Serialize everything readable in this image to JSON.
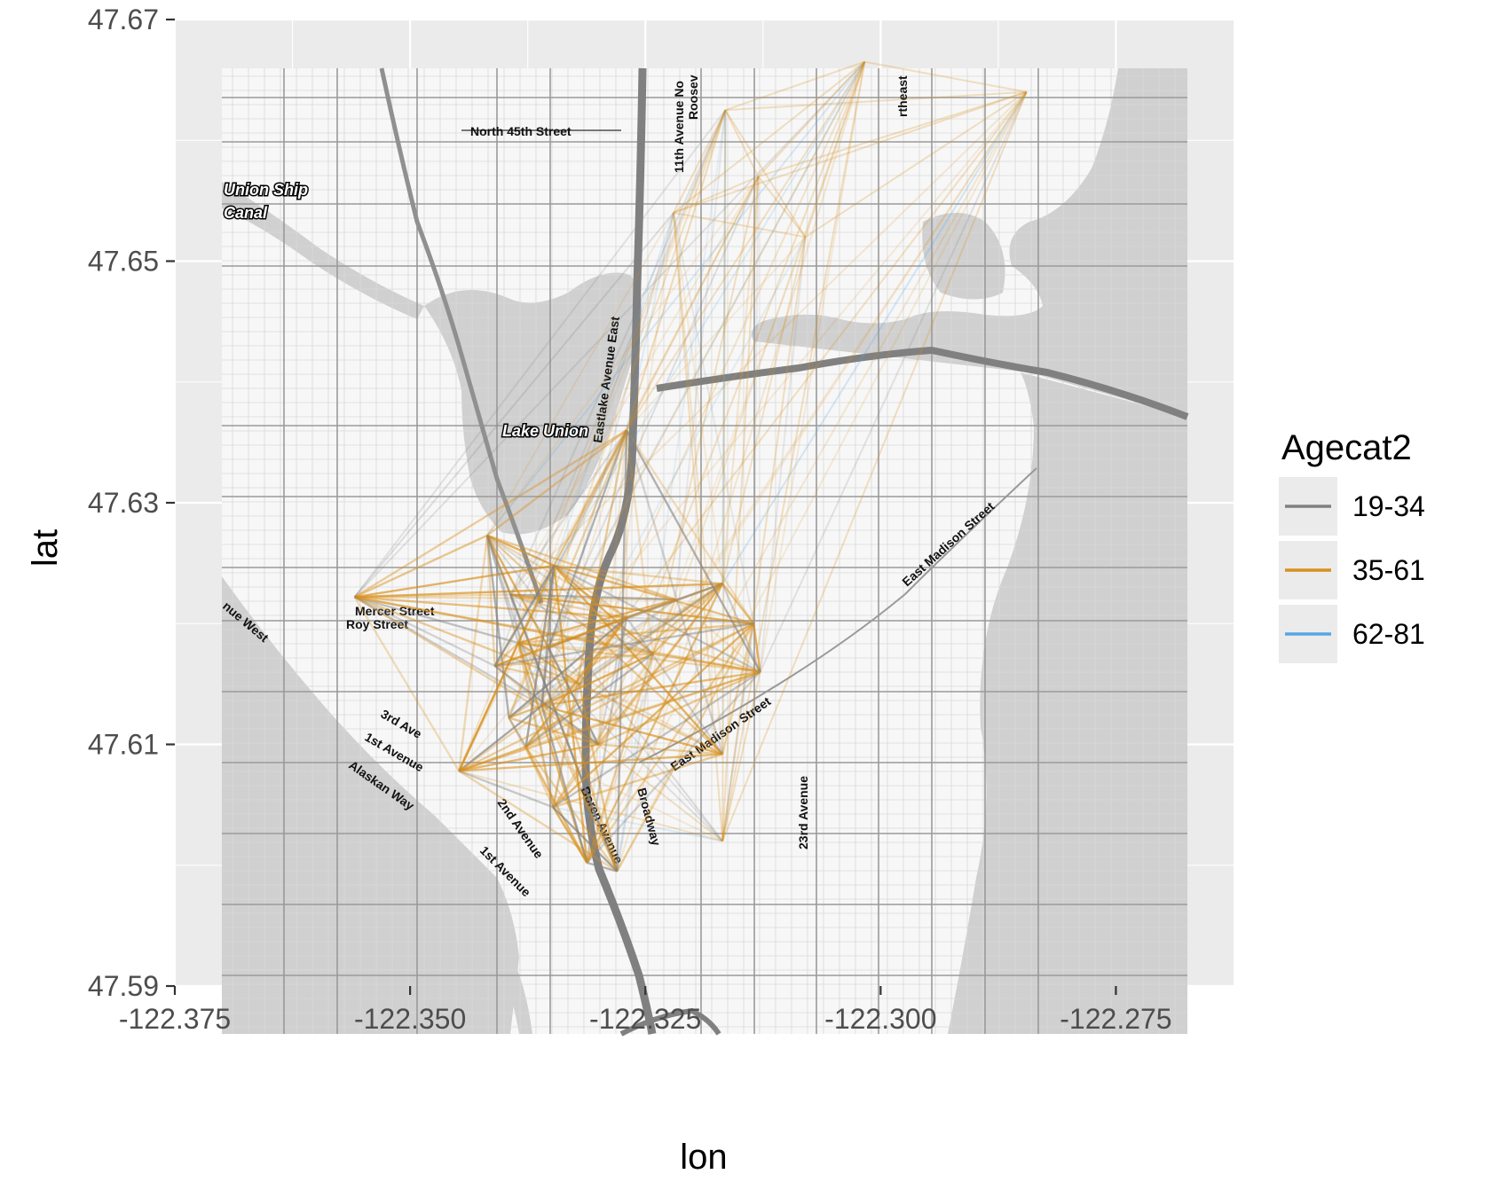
{
  "chart_data": {
    "type": "map",
    "xlabel": "lon",
    "ylabel": "lat",
    "xlim": [
      -122.375,
      -122.2625
    ],
    "ylim": [
      47.59,
      47.67
    ],
    "x_ticks": [
      -122.375,
      -122.35,
      -122.325,
      -122.3,
      -122.275
    ],
    "x_tick_labels": [
      "-122.375",
      "-122.350",
      "-122.325",
      "-122.300",
      "-122.275"
    ],
    "y_ticks": [
      47.59,
      47.61,
      47.63,
      47.65,
      47.67
    ],
    "y_tick_labels": [
      "47.59",
      "47.61",
      "47.63",
      "47.65",
      "47.67"
    ],
    "grid": true,
    "legend": {
      "title": "Agecat2",
      "position": "right",
      "entries": [
        {
          "label": "19-34",
          "color": "#808080"
        },
        {
          "label": "35-61",
          "color": "#D8901C"
        },
        {
          "label": "62-81",
          "color": "#56A6E4"
        }
      ]
    },
    "basemap_labels": [
      "North 45th Street",
      "Union Ship",
      "Canal",
      "Lake Union",
      "Eastlake Avenue East",
      "11th Avenue No",
      "Roosev",
      "rtheast",
      "East Madison Street",
      "Mercer Street",
      "Roy Street",
      "nue West",
      "3rd Ave",
      "1st Avenue",
      "Alaskan Way",
      "2nd Avenue",
      "1st Avenue",
      "Broadway",
      "Boren Avenue",
      "East Madison Street",
      "23rd Avenue"
    ],
    "stations": [
      {
        "lon": -122.3559,
        "lat": 47.6222
      },
      {
        "lon": -122.3418,
        "lat": 47.6273
      },
      {
        "lon": -122.3393,
        "lat": 47.6224
      },
      {
        "lon": -122.3385,
        "lat": 47.6184
      },
      {
        "lon": -122.3347,
        "lat": 47.6248
      },
      {
        "lon": -122.3353,
        "lat": 47.618
      },
      {
        "lon": -122.336,
        "lat": 47.6132
      },
      {
        "lon": -122.3377,
        "lat": 47.6098
      },
      {
        "lon": -122.3395,
        "lat": 47.6122
      },
      {
        "lon": -122.332,
        "lat": 47.615
      },
      {
        "lon": -122.327,
        "lat": 47.6205
      },
      {
        "lon": -122.3242,
        "lat": 47.6175
      },
      {
        "lon": -122.3218,
        "lat": 47.622
      },
      {
        "lon": -122.3168,
        "lat": 47.6233
      },
      {
        "lon": -122.3135,
        "lat": 47.62
      },
      {
        "lon": -122.3128,
        "lat": 47.616
      },
      {
        "lon": -122.3168,
        "lat": 47.6092
      },
      {
        "lon": -122.327,
        "lat": 47.636
      },
      {
        "lon": -122.3312,
        "lat": 47.6002
      },
      {
        "lon": -122.328,
        "lat": 47.5995
      },
      {
        "lon": -122.3448,
        "lat": 47.6078
      },
      {
        "lon": -122.3348,
        "lat": 47.6048
      },
      {
        "lon": -122.341,
        "lat": 47.6165
      },
      {
        "lon": -122.33,
        "lat": 47.61
      }
    ],
    "northern_stations": [
      {
        "lon": -122.3165,
        "lat": 47.6625
      },
      {
        "lon": -122.3017,
        "lat": 47.6665
      },
      {
        "lon": -122.2845,
        "lat": 47.664
      },
      {
        "lon": -122.313,
        "lat": 47.657
      },
      {
        "lon": -122.308,
        "lat": 47.652
      },
      {
        "lon": -122.322,
        "lat": 47.654
      },
      {
        "lon": -122.3168,
        "lat": 47.602
      }
    ]
  }
}
